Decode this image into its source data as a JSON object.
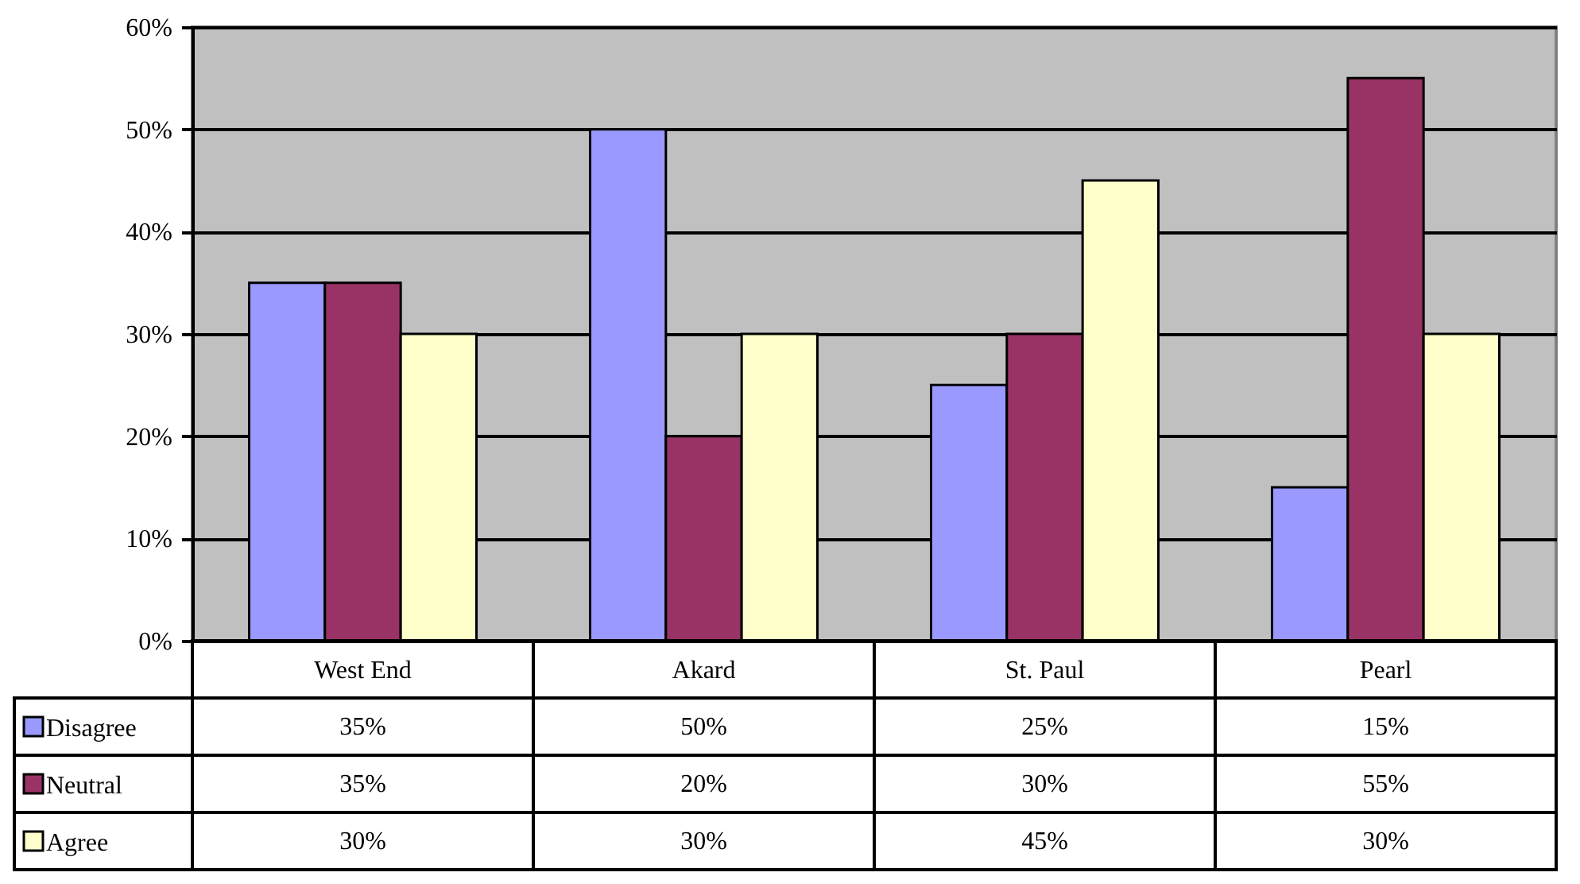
{
  "chart_data": {
    "type": "bar",
    "categories": [
      "West End",
      "Akard",
      "St. Paul",
      "Pearl"
    ],
    "series": [
      {
        "name": "Disagree",
        "color": "#9999ff",
        "values": [
          35,
          50,
          25,
          15
        ],
        "value_labels": [
          "35%",
          "50%",
          "25%",
          "15%"
        ]
      },
      {
        "name": "Neutral",
        "color": "#993366",
        "values": [
          35,
          20,
          30,
          55
        ],
        "value_labels": [
          "35%",
          "20%",
          "30%",
          "55%"
        ]
      },
      {
        "name": "Agree",
        "color": "#ffffcc",
        "values": [
          30,
          30,
          45,
          30
        ],
        "value_labels": [
          "30%",
          "30%",
          "45%",
          "30%"
        ]
      }
    ],
    "ylim": [
      0,
      60
    ],
    "yticks": [
      {
        "value": 0,
        "label": "0%"
      },
      {
        "value": 10,
        "label": "10%"
      },
      {
        "value": 20,
        "label": "20%"
      },
      {
        "value": 30,
        "label": "30%"
      },
      {
        "value": 40,
        "label": "40%"
      },
      {
        "value": 50,
        "label": "50%"
      },
      {
        "value": 60,
        "label": "60%"
      }
    ],
    "grid": "y",
    "legend": "bottom left"
  }
}
